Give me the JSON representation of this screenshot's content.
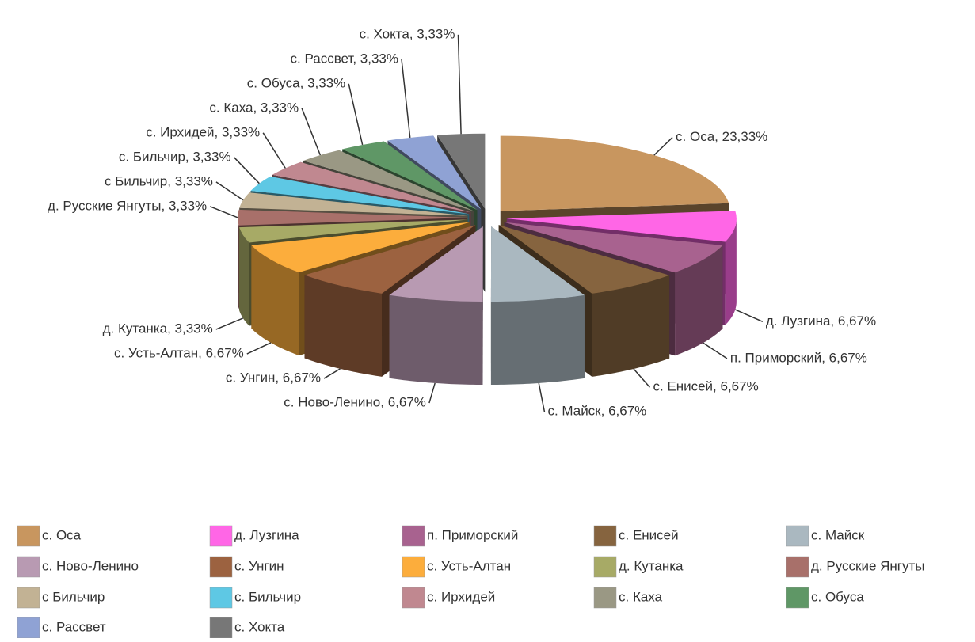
{
  "chart_data": {
    "type": "pie3d",
    "categories": [
      "с. Оса",
      "д. Лузгина",
      "п. Приморский",
      "с. Енисей",
      "с. Майск",
      "с. Ново-Ленино",
      "с. Унгин",
      "с. Усть-Алтан",
      "д. Кутанка",
      "д. Русские Янгуты",
      "с Бильчир",
      "с. Бильчир",
      "с. Ирхидей",
      "с. Каха",
      "с. Обуса",
      "с. Рассвет",
      "с. Хокта"
    ],
    "values": [
      23.33,
      6.67,
      6.67,
      6.67,
      6.67,
      6.67,
      6.67,
      6.67,
      3.33,
      3.33,
      3.33,
      3.33,
      3.33,
      3.33,
      3.33,
      3.33,
      3.33
    ],
    "value_labels": [
      "с. Оса, 23,33%",
      "д. Лузгина, 6,67%",
      "п. Приморский, 6,67%",
      "с. Енисей, 6,67%",
      "с. Майск, 6,67%",
      "с. Ново-Ленино, 6,67%",
      "с. Унгин, 6,67%",
      "с. Усть-Алтан, 6,67%",
      "д. Кутанка, 3,33%",
      "д. Русские Янгуты, 3,33%",
      "с Бильчир, 3,33%",
      "с. Бильчир, 3,33%",
      "с. Ирхидей, 3,33%",
      "с. Каха, 3,33%",
      "с. Обуса, 3,33%",
      "с. Рассвет, 3,33%",
      "с. Хокта, 3,33%"
    ],
    "colors": [
      "#c8965f",
      "#ff66e6",
      "#a8628f",
      "#86643f",
      "#aab8c0",
      "#b89ab2",
      "#9c6240",
      "#fcad3c",
      "#a7aa66",
      "#a8706a",
      "#c2b294",
      "#5ec8e4",
      "#c08890",
      "#9a9884",
      "#5f9766",
      "#8fa2d4",
      "#777777"
    ],
    "legend": "bottom"
  }
}
